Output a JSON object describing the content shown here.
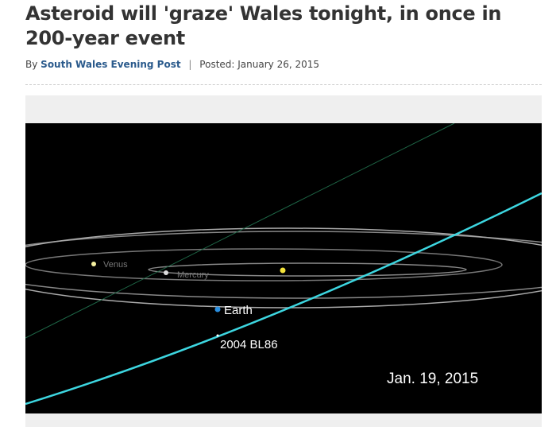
{
  "header": {
    "title": "Asteroid will 'graze' Wales tonight, in once in 200-year event"
  },
  "byline": {
    "prefix": "By",
    "author": "South Wales Evening Post",
    "separator": "|",
    "posted": "Posted: January 26, 2015"
  },
  "image": {
    "labels": {
      "venus": "Venus",
      "mercury": "Mercury",
      "earth": "Earth",
      "asteroid": "2004 BL86",
      "date": "Jan. 19, 2015"
    }
  }
}
